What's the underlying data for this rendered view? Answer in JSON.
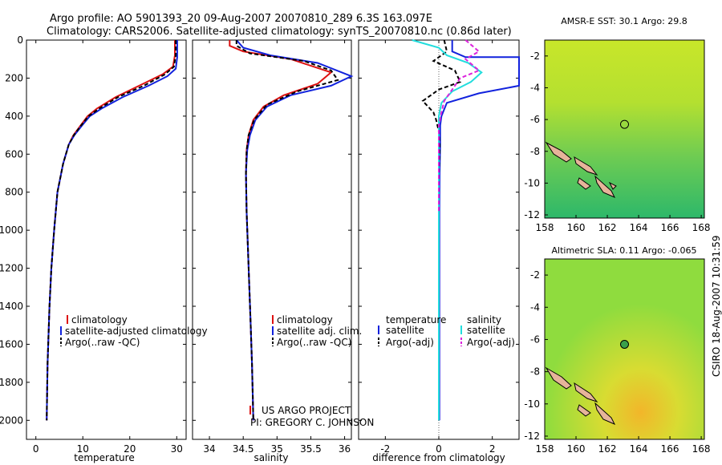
{
  "title_line1": "Argo profile: AO 5901393_20 09-Aug-2007 20070810_289 6.3S 163.097E",
  "title_line2": "Climatology: CARS2006. Satellite-adjusted climatology: synTS_20070810.nc (0.86d later)",
  "side_note": "CSIRO 18-Aug-2007 10:31:59",
  "project_line1": "US ARGO PROJECT",
  "project_line2": "PI: GREGORY C. JOHNSON",
  "colors": {
    "climatology": "#dd1111",
    "satellite": "#1122dd",
    "argo": "#000000",
    "sat_salt": "#22dddd",
    "argo_salt": "#dd22dd"
  },
  "chart_data": [
    {
      "type": "line",
      "xlabel": "temperature",
      "ylabel": "",
      "xlim": [
        -2,
        32
      ],
      "ylim": [
        2100,
        0
      ],
      "xticks": [
        0,
        10,
        20,
        30
      ],
      "yticks": [
        0,
        200,
        400,
        600,
        800,
        1000,
        1200,
        1400,
        1600,
        1800,
        2000
      ],
      "legend": [
        "climatology",
        "satellite-adjusted climatology",
        "Argo(..raw -QC)"
      ],
      "series": [
        {
          "name": "climatology",
          "x": [
            29.6,
            29.6,
            29.2,
            27,
            22,
            17,
            13,
            11,
            9.5,
            8,
            7,
            5.8,
            4.6,
            3.9,
            3.3,
            2.9,
            2.5,
            2.3
          ],
          "y": [
            0,
            80,
            140,
            180,
            240,
            300,
            360,
            400,
            450,
            500,
            550,
            650,
            800,
            1000,
            1200,
            1400,
            1700,
            2000
          ]
        },
        {
          "name": "satellite-adjusted climatology",
          "x": [
            30.1,
            30.1,
            29.8,
            28,
            24,
            18.5,
            14,
            11.5,
            9.8,
            8.2,
            7,
            5.8,
            4.6,
            3.9,
            3.3,
            2.9,
            2.5,
            2.3
          ],
          "y": [
            0,
            90,
            150,
            190,
            240,
            300,
            360,
            400,
            450,
            500,
            550,
            650,
            800,
            1000,
            1200,
            1400,
            1700,
            2000
          ]
        },
        {
          "name": "Argo(..raw -QC)",
          "x": [
            29.8,
            29.8,
            29.4,
            27.5,
            23,
            17.5,
            13.5,
            11.2,
            9.6,
            8.1,
            7,
            5.8,
            4.6,
            3.9,
            3.3,
            2.9,
            2.5,
            2.3
          ],
          "y": [
            0,
            80,
            140,
            180,
            240,
            300,
            360,
            400,
            450,
            500,
            550,
            650,
            800,
            1000,
            1200,
            1400,
            1700,
            2000
          ]
        }
      ]
    },
    {
      "type": "line",
      "xlabel": "salinity",
      "xlim": [
        33.75,
        36.1
      ],
      "ylim": [
        2100,
        0
      ],
      "xticks": [
        34,
        34.5,
        35,
        35.5,
        36
      ],
      "legend": [
        "climatology",
        "satellite adj. clim.",
        "Argo(..raw -QC)"
      ],
      "series": [
        {
          "name": "climatology",
          "x": [
            34.3,
            34.3,
            34.5,
            35.2,
            35.8,
            35.6,
            35.1,
            34.8,
            34.65,
            34.58,
            34.55,
            34.54,
            34.55,
            34.57,
            34.59,
            34.61,
            34.63,
            34.65
          ],
          "y": [
            0,
            30,
            60,
            100,
            170,
            230,
            290,
            350,
            420,
            500,
            580,
            700,
            900,
            1100,
            1300,
            1500,
            1700,
            2000
          ]
        },
        {
          "name": "satellite adj. clim.",
          "x": [
            34.4,
            34.5,
            34.9,
            35.6,
            36.1,
            35.8,
            35.2,
            34.85,
            34.68,
            34.6,
            34.56,
            34.54,
            34.55,
            34.57,
            34.59,
            34.61,
            34.63,
            34.65
          ],
          "y": [
            0,
            40,
            80,
            120,
            190,
            240,
            290,
            350,
            420,
            500,
            580,
            700,
            900,
            1100,
            1300,
            1500,
            1700,
            2000
          ]
        },
        {
          "name": "Argo(..raw -QC)",
          "x": [
            34.4,
            34.4,
            34.6,
            35.4,
            35.8,
            35.9,
            35.3,
            34.85,
            34.66,
            34.58,
            34.55,
            34.54,
            34.55,
            34.57,
            34.59,
            34.61,
            34.63,
            34.65
          ],
          "y": [
            0,
            30,
            70,
            110,
            160,
            210,
            270,
            340,
            420,
            500,
            580,
            700,
            900,
            1100,
            1300,
            1500,
            1700,
            2000
          ]
        }
      ]
    },
    {
      "type": "line",
      "xlabel": "difference from climatology",
      "xlim": [
        -3,
        3
      ],
      "ylim": [
        2100,
        0
      ],
      "xticks": [
        -2,
        0,
        2
      ],
      "legend_groups": [
        "temperature",
        "salinity"
      ],
      "legend": [
        "satellite",
        "Argo(-adj)",
        "satellite",
        "Argo(-adj)"
      ],
      "series": [
        {
          "name": "temperature satellite",
          "x": [
            0.5,
            0.5,
            1,
            3,
            3,
            3,
            1.5,
            0.3,
            0.1,
            0.05,
            0.05,
            0.03,
            0.02,
            0.02,
            0.02,
            0.02
          ],
          "y": [
            0,
            60,
            90,
            90,
            150,
            240,
            280,
            330,
            400,
            450,
            550,
            700,
            900,
            1200,
            1600,
            2000
          ]
        },
        {
          "name": "temperature Argo(-adj)",
          "x": [
            0.2,
            0.3,
            -0.2,
            0.6,
            0.8,
            0,
            -0.6,
            -0.2,
            -0.1,
            0,
            0.03,
            0,
            0,
            0,
            0,
            0
          ],
          "y": [
            0,
            60,
            110,
            160,
            220,
            260,
            320,
            380,
            420,
            480,
            560,
            700,
            900,
            1200,
            1600,
            2000
          ]
        },
        {
          "name": "salinity satellite",
          "x": [
            -1,
            0,
            0.3,
            1.1,
            1.6,
            1.2,
            0.5,
            0.1,
            0,
            0,
            0,
            0,
            0,
            0,
            0,
            0
          ],
          "y": [
            0,
            40,
            80,
            120,
            170,
            220,
            270,
            330,
            400,
            480,
            560,
            700,
            900,
            1200,
            1600,
            2000
          ]
        },
        {
          "name": "salinity Argo(-adj)",
          "x": [
            1,
            1.5,
            1,
            1.5,
            0.8,
            0.5,
            0.2,
            0.1,
            0,
            0,
            0,
            0
          ],
          "y": [
            0,
            60,
            100,
            160,
            200,
            260,
            320,
            380,
            450,
            560,
            700,
            900
          ]
        }
      ]
    },
    {
      "type": "heatmap",
      "title": "AMSR-E SST: 30.1 Argo: 29.8",
      "xlim": [
        158,
        168.2
      ],
      "ylim": [
        -12.2,
        -1
      ],
      "xticks": [
        158,
        160,
        162,
        164,
        166,
        168
      ],
      "yticks": [
        -2,
        -4,
        -6,
        -8,
        -10,
        -12
      ],
      "marker": {
        "lon": 163.1,
        "lat": -6.3
      }
    },
    {
      "type": "heatmap",
      "title": "Altimetric SLA: 0.11 Argo: -0.065",
      "xlim": [
        158,
        168.2
      ],
      "ylim": [
        -12.2,
        -1
      ],
      "xticks": [
        158,
        160,
        162,
        164,
        166,
        168
      ],
      "yticks": [
        -2,
        -4,
        -6,
        -8,
        -10,
        -12
      ],
      "marker": {
        "lon": 163.1,
        "lat": -6.3
      }
    }
  ]
}
